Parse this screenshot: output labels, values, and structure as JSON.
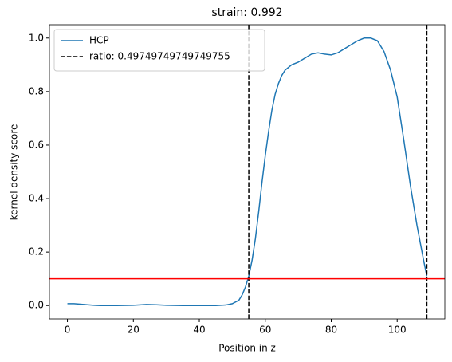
{
  "chart_data": {
    "type": "line",
    "title": "strain: 0.992",
    "x_label": "Position in z",
    "y_label": "kernel density score",
    "x": [
      0,
      2,
      5,
      8,
      10,
      15,
      20,
      24,
      27,
      30,
      35,
      40,
      45,
      48,
      50,
      52,
      53,
      54,
      55,
      56,
      57,
      58,
      59,
      60,
      61,
      62,
      63,
      64,
      65,
      66,
      68,
      70,
      72,
      74,
      76,
      78,
      80,
      82,
      84,
      86,
      88,
      90,
      92,
      94,
      96,
      98,
      100,
      102,
      104,
      106,
      108,
      109
    ],
    "series": [
      {
        "name": "HCP",
        "color": "#1f77b4",
        "values": [
          0.007,
          0.007,
          0.004,
          0.001,
          0,
          0,
          0.001,
          0.004,
          0.003,
          0.001,
          0,
          0,
          0,
          0.002,
          0.007,
          0.02,
          0.04,
          0.07,
          0.11,
          0.17,
          0.25,
          0.35,
          0.46,
          0.56,
          0.65,
          0.73,
          0.79,
          0.83,
          0.86,
          0.88,
          0.9,
          0.91,
          0.925,
          0.94,
          0.945,
          0.94,
          0.937,
          0.945,
          0.96,
          0.975,
          0.99,
          1.0,
          1.0,
          0.99,
          0.95,
          0.88,
          0.78,
          0.62,
          0.45,
          0.3,
          0.17,
          0.11
        ]
      }
    ],
    "vlines": {
      "name": "ratio: 0.49749749749749755",
      "color": "#000000",
      "values": [
        55,
        109
      ]
    },
    "hlines": {
      "color": "#ff0000",
      "values": [
        0.1
      ]
    },
    "xlim": [
      -5.45,
      114.45
    ],
    "ylim": [
      -0.05,
      1.05
    ],
    "xticks": [
      0,
      20,
      40,
      60,
      80,
      100
    ],
    "yticks": [
      {
        "value": 0,
        "label": "0.0"
      },
      {
        "value": 0.2,
        "label": "0.2"
      },
      {
        "value": 0.4,
        "label": "0.4"
      },
      {
        "value": 0.6,
        "label": "0.6"
      },
      {
        "value": 0.8,
        "label": "0.8"
      },
      {
        "value": 1,
        "label": "1.0"
      }
    ],
    "legend": "upper left"
  }
}
